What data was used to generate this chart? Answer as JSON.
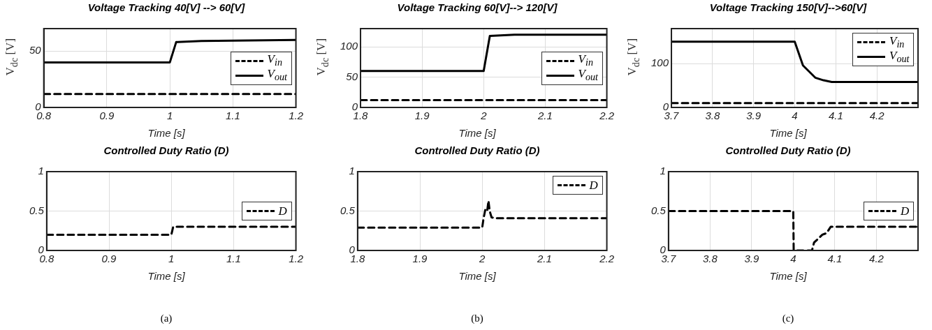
{
  "chart_data": [
    {
      "type": "line",
      "title": "Voltage Tracking 40[V] --> 60[V]",
      "xlabel": "Time [s]",
      "ylabel": "V$_{dc}$ [V]",
      "xlim": [
        0.8,
        1.2
      ],
      "xticks": [
        0.8,
        0.9,
        1,
        1.1,
        1.2
      ],
      "ylim": [
        0,
        70
      ],
      "yticks": [
        0,
        50
      ],
      "grid": true,
      "legend": "right",
      "series": [
        {
          "name": "V$_{in}$",
          "color": "#000000",
          "line_style": "dashed",
          "x": [
            0.8,
            1.2
          ],
          "values": [
            12,
            12
          ]
        },
        {
          "name": "V$_{out}$",
          "color": "#000000",
          "line_style": "solid",
          "x": [
            0.8,
            1.0,
            1.01,
            1.05,
            1.2
          ],
          "values": [
            40,
            40,
            58,
            59,
            60
          ]
        }
      ]
    },
    {
      "type": "line",
      "title": "Voltage Tracking 60[V]--> 120[V]",
      "xlabel": "Time [s]",
      "ylabel": "V$_{dc}$ [V]",
      "xlim": [
        1.8,
        2.2
      ],
      "xticks": [
        1.8,
        1.9,
        2,
        2.1,
        2.2
      ],
      "ylim": [
        0,
        130
      ],
      "yticks": [
        0,
        50,
        100
      ],
      "grid": true,
      "legend": "right",
      "series": [
        {
          "name": "V$_{in}$",
          "color": "#000000",
          "line_style": "dashed",
          "x": [
            1.8,
            2.2
          ],
          "values": [
            12,
            12
          ]
        },
        {
          "name": "V$_{out}$",
          "color": "#000000",
          "line_style": "solid",
          "x": [
            1.8,
            2.0,
            2.01,
            2.05,
            2.2
          ],
          "values": [
            60,
            60,
            118,
            120,
            120
          ]
        }
      ]
    },
    {
      "type": "line",
      "title": "Voltage Tracking 150[V]-->60[V]",
      "xlabel": "Time [s]",
      "ylabel": "V$_{dc}$ [V]",
      "xlim": [
        3.7,
        4.3
      ],
      "xticks": [
        3.7,
        3.8,
        3.9,
        4,
        4.1,
        4.2
      ],
      "ylim": [
        0,
        180
      ],
      "yticks": [
        0,
        100
      ],
      "grid": true,
      "legend": "top right",
      "series": [
        {
          "name": "V$_{in}$",
          "color": "#000000",
          "line_style": "dashed",
          "x": [
            3.7,
            4.3
          ],
          "values": [
            10,
            10
          ]
        },
        {
          "name": "V$_{out}$",
          "color": "#000000",
          "line_style": "solid",
          "x": [
            3.7,
            4.0,
            4.02,
            4.05,
            4.07,
            4.09,
            4.3
          ],
          "values": [
            150,
            150,
            96,
            68,
            62,
            58,
            58
          ]
        }
      ]
    },
    {
      "type": "line",
      "title": "Controlled Duty Ratio (D)",
      "xlabel": "Time [s]",
      "xlim": [
        0.8,
        1.2
      ],
      "xticks": [
        0.8,
        0.9,
        1,
        1.1,
        1.2
      ],
      "ylim": [
        0,
        1
      ],
      "yticks": [
        0,
        0.5,
        1
      ],
      "grid": true,
      "legend": "right",
      "annotations": [
        "(a)"
      ],
      "series": [
        {
          "name": "D",
          "color": "#000000",
          "line_style": "dashed",
          "x": [
            0.8,
            1.0,
            1.003,
            1.2
          ],
          "values": [
            0.2,
            0.2,
            0.3,
            0.3
          ]
        }
      ]
    },
    {
      "type": "line",
      "title": "Controlled Duty Ratio (D)",
      "xlabel": "Time [s]",
      "xlim": [
        1.8,
        2.2
      ],
      "xticks": [
        1.8,
        1.9,
        2,
        2.1,
        2.2
      ],
      "ylim": [
        0,
        1
      ],
      "yticks": [
        0,
        0.5,
        1
      ],
      "grid": true,
      "legend": "top right",
      "annotations": [
        "(b)"
      ],
      "series": [
        {
          "name": "D",
          "color": "#000000",
          "line_style": "dashed",
          "x": [
            1.8,
            2.0,
            2.002,
            2.005,
            2.008,
            2.01,
            2.012,
            2.015,
            2.02,
            2.2
          ],
          "values": [
            0.29,
            0.29,
            0.4,
            0.52,
            0.5,
            0.63,
            0.5,
            0.42,
            0.41,
            0.41
          ]
        }
      ]
    },
    {
      "type": "line",
      "title": "Controlled Duty Ratio (D)",
      "xlabel": "Time [s]",
      "xlim": [
        3.7,
        4.3
      ],
      "xticks": [
        3.7,
        3.8,
        3.9,
        4,
        4.1,
        4.2
      ],
      "ylim": [
        0,
        1
      ],
      "yticks": [
        0,
        0.5,
        1
      ],
      "grid": true,
      "legend": "right",
      "annotations": [
        "(c)"
      ],
      "series": [
        {
          "name": "D",
          "color": "#000000",
          "line_style": "dashed",
          "x": [
            3.7,
            4.0,
            4.001,
            4.045,
            4.05,
            4.07,
            4.08,
            4.09,
            4.3
          ],
          "values": [
            0.5,
            0.5,
            0,
            0,
            0.1,
            0.2,
            0.22,
            0.3,
            0.3
          ]
        }
      ]
    }
  ]
}
